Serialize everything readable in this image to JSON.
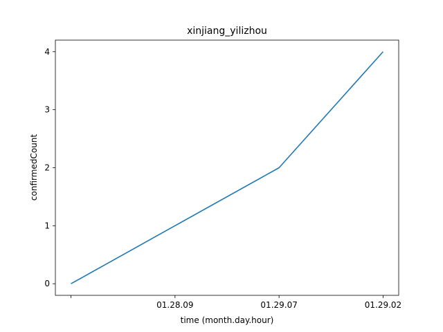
{
  "chart_data": {
    "type": "line",
    "title": "xinjiang_yilizhou",
    "xlabel": "time (month.day.hour)",
    "ylabel": "confirmedCount",
    "x_tick_labels": [
      "",
      "01.28.09",
      "01.29.07",
      "01.29.02"
    ],
    "series": [
      {
        "values": [
          0,
          1,
          2,
          4
        ],
        "color": "#1f77b4"
      }
    ],
    "yticks": [
      0,
      1,
      2,
      3,
      4
    ],
    "ylim": [
      -0.2,
      4.2
    ],
    "grid": false
  }
}
